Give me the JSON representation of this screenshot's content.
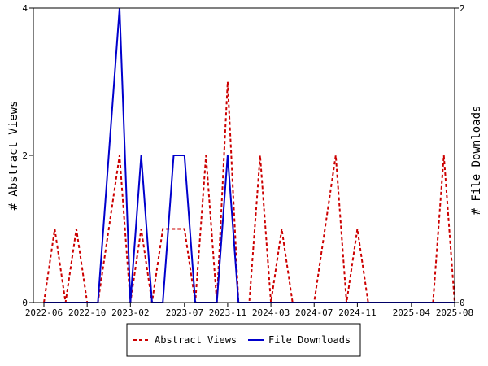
{
  "chart_data": {
    "type": "line",
    "x_tick_labels": [
      "2022-06",
      "2022-10",
      "2023-02",
      "2023-07",
      "2023-11",
      "2024-03",
      "2024-07",
      "2024-11",
      "2025-04",
      "2025-08"
    ],
    "ylabel_left": "# Abstract Views",
    "ylabel_right": "# File Downloads",
    "yticks_left": [
      "0",
      "2",
      "4"
    ],
    "yticks_right": [
      "0",
      "2"
    ],
    "ylim_left": [
      0,
      4
    ],
    "ylim_right": [
      0,
      2
    ],
    "grid": false,
    "legend_position": "bottom-center",
    "series": [
      {
        "name": "Abstract Views",
        "axis": "left",
        "color": "#cc0000",
        "style": "dashed",
        "points": [
          [
            "2022-06",
            0
          ],
          [
            "2022-07",
            1
          ],
          [
            "2022-08",
            0
          ],
          [
            "2022-09",
            1
          ],
          [
            "2022-10",
            0
          ],
          [
            "2022-11",
            0
          ],
          [
            "2022-12",
            1
          ],
          [
            "2023-01",
            2
          ],
          [
            "2023-02",
            0
          ],
          [
            "2023-03",
            1
          ],
          [
            "2023-04",
            0
          ],
          [
            "2023-05",
            1
          ],
          [
            "2023-06",
            1
          ],
          [
            "2023-07",
            1
          ],
          [
            "2023-08",
            0
          ],
          [
            "2023-09",
            2
          ],
          [
            "2023-10",
            0
          ],
          [
            "2023-11",
            3
          ],
          [
            "2023-12",
            0
          ],
          [
            "2024-01",
            0
          ],
          [
            "2024-02",
            2
          ],
          [
            "2024-03",
            0
          ],
          [
            "2024-04",
            1
          ],
          [
            "2024-05",
            0
          ],
          [
            "2024-06",
            0
          ],
          [
            "2024-07",
            0
          ],
          [
            "2024-08",
            1
          ],
          [
            "2024-09",
            2
          ],
          [
            "2024-10",
            0
          ],
          [
            "2024-11",
            1
          ],
          [
            "2024-12",
            0
          ],
          [
            "2025-01",
            0
          ],
          [
            "2025-02",
            0
          ],
          [
            "2025-03",
            0
          ],
          [
            "2025-04",
            0
          ],
          [
            "2025-05",
            0
          ],
          [
            "2025-06",
            0
          ],
          [
            "2025-07",
            2
          ],
          [
            "2025-08",
            0
          ]
        ]
      },
      {
        "name": "File Downloads",
        "axis": "right",
        "color": "#0000cc",
        "style": "solid",
        "points": [
          [
            "2022-06",
            0
          ],
          [
            "2022-07",
            0
          ],
          [
            "2022-08",
            0
          ],
          [
            "2022-09",
            0
          ],
          [
            "2022-10",
            0
          ],
          [
            "2022-11",
            0
          ],
          [
            "2022-12",
            1
          ],
          [
            "2023-01",
            2
          ],
          [
            "2023-02",
            0
          ],
          [
            "2023-03",
            1
          ],
          [
            "2023-04",
            0
          ],
          [
            "2023-05",
            0
          ],
          [
            "2023-06",
            1
          ],
          [
            "2023-07",
            1
          ],
          [
            "2023-08",
            0
          ],
          [
            "2023-09",
            0
          ],
          [
            "2023-10",
            0
          ],
          [
            "2023-11",
            1
          ],
          [
            "2023-12",
            0
          ],
          [
            "2024-01",
            0
          ],
          [
            "2024-02",
            0
          ],
          [
            "2024-03",
            0
          ],
          [
            "2024-04",
            0
          ],
          [
            "2024-05",
            0
          ],
          [
            "2024-06",
            0
          ],
          [
            "2024-07",
            0
          ],
          [
            "2024-08",
            0
          ],
          [
            "2024-09",
            0
          ],
          [
            "2024-10",
            0
          ],
          [
            "2024-11",
            0
          ],
          [
            "2024-12",
            0
          ],
          [
            "2025-01",
            0
          ],
          [
            "2025-02",
            0
          ],
          [
            "2025-03",
            0
          ],
          [
            "2025-04",
            0
          ],
          [
            "2025-05",
            0
          ],
          [
            "2025-06",
            0
          ],
          [
            "2025-07",
            0
          ],
          [
            "2025-08",
            0
          ]
        ]
      }
    ]
  }
}
